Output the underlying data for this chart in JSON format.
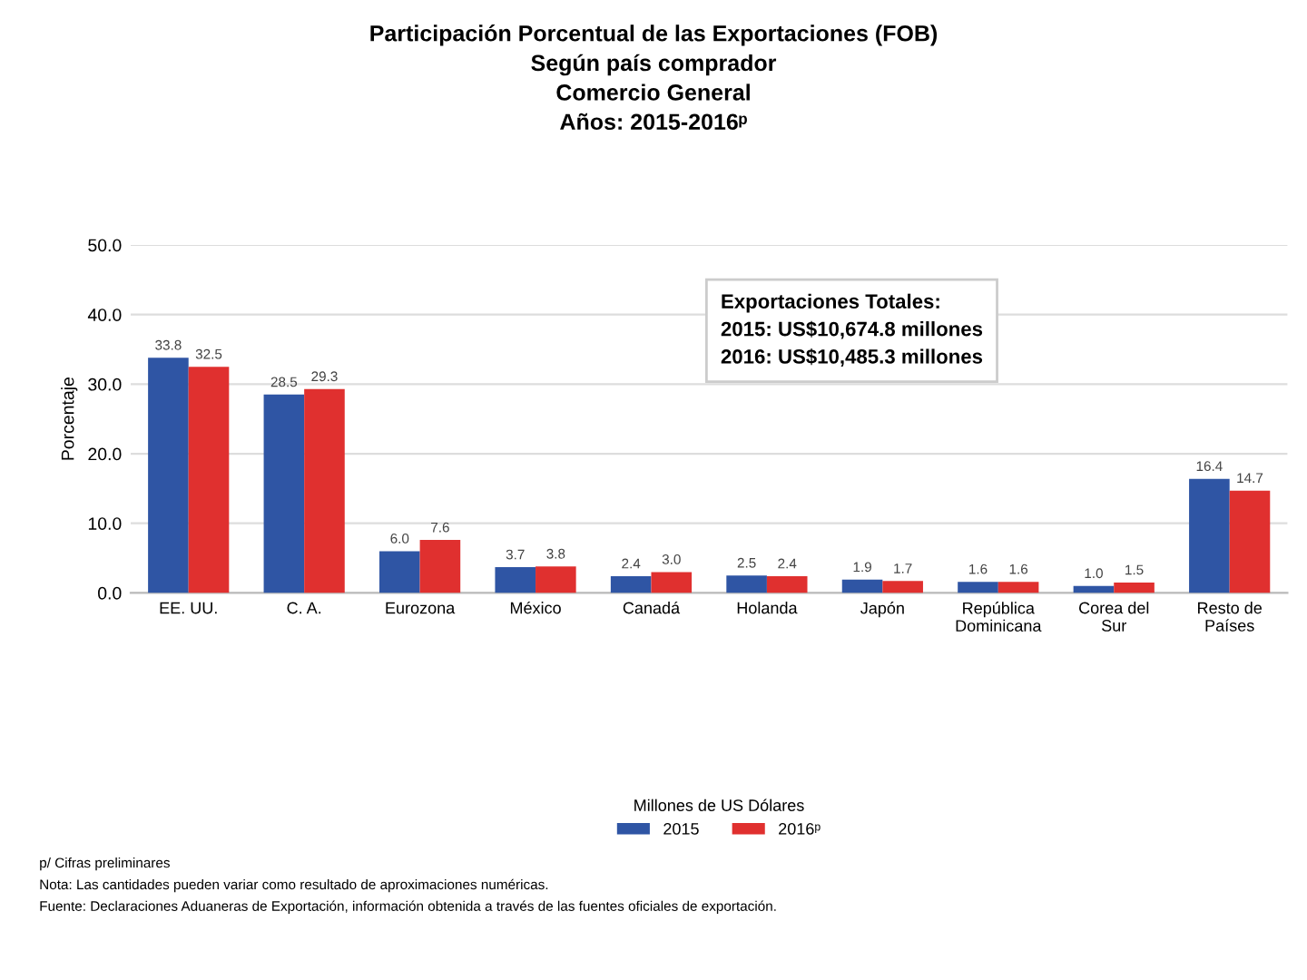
{
  "chart_data": {
    "type": "bar",
    "title": "Participación Porcentual de las Exportaciones (FOB)\nSegún país comprador\nComercio General\nAños: 2015-2016ᵖ",
    "ylabel": "Porcentaje",
    "legend_title": "Millones de US Dólares",
    "categories": [
      "EE. UU.",
      "C. A.",
      "Eurozona",
      "México",
      "Canadá",
      "Holanda",
      "Japón",
      "República\nDominicana",
      "Corea del\nSur",
      "Resto de\nPaíses"
    ],
    "series": [
      {
        "name": "2015",
        "color": "#2f55a4",
        "values": [
          33.8,
          28.5,
          6.0,
          3.7,
          2.4,
          2.5,
          1.9,
          1.6,
          1.0,
          16.4
        ],
        "value_labels": [
          "33.8",
          "28.5",
          "6.0",
          "3.7",
          "2.4",
          "2.5",
          "1.9",
          "1.6",
          "1.0",
          "16.4"
        ]
      },
      {
        "name": "2016ᵖ",
        "color": "#e0302f",
        "values": [
          32.5,
          29.3,
          7.6,
          3.8,
          3.0,
          2.4,
          1.7,
          1.6,
          1.5,
          14.7
        ],
        "value_labels": [
          "32.5",
          "29.3",
          "7.6",
          "3.8",
          "3.0",
          "2.4",
          "1.7",
          "1.6",
          "1.5",
          "14.7"
        ]
      }
    ],
    "ylim": [
      0,
      50
    ],
    "yticks": [
      {
        "value": 0,
        "label": "0.0"
      },
      {
        "value": 10,
        "label": "10.0"
      },
      {
        "value": 20,
        "label": "20.0"
      },
      {
        "value": 30,
        "label": "30.0"
      },
      {
        "value": 40,
        "label": "40.0"
      },
      {
        "value": 50,
        "label": "50.0"
      }
    ],
    "grid": "y",
    "legend": "bottom",
    "annotations": [
      "Exportaciones Totales:\n2015: US$10,674.8 millones\n2016: US$10,485.3 millones",
      "p/ Cifras preliminares",
      "Nota: Las cantidades pueden variar como resultado de aproximaciones numéricas.",
      "Fuente: Declaraciones Aduaneras de Exportación, información obtenida a través de las fuentes oficiales de exportación."
    ]
  }
}
